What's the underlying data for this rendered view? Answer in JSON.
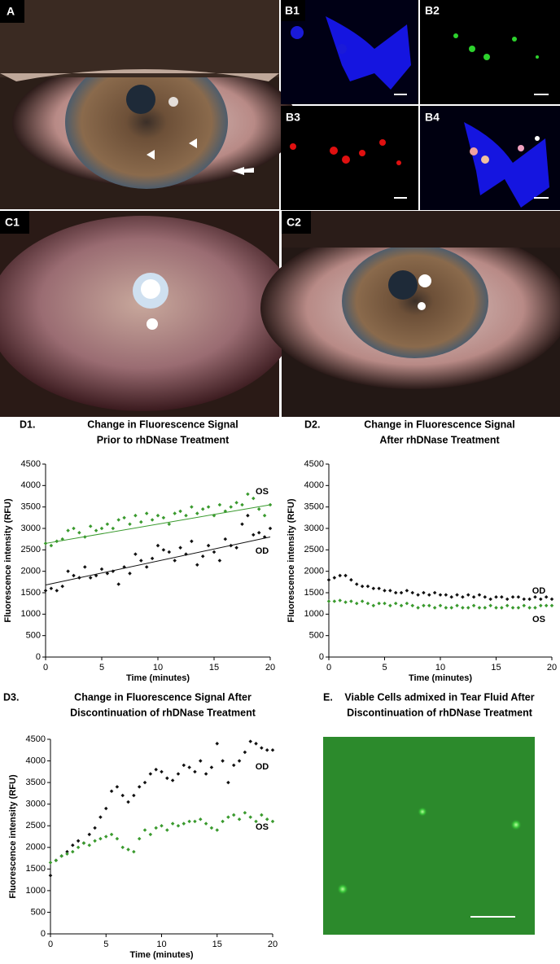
{
  "panels": {
    "A": "A",
    "B1": "B1",
    "B2": "B2",
    "B3": "B3",
    "B4": "B4",
    "C1": "C1",
    "C2": "C2",
    "E": {
      "label": "E.",
      "title": [
        "Viable Cells admixed in Tear Fluid After",
        "Discontinuation of rhDNase Treatment"
      ]
    }
  },
  "chart_data": [
    {
      "type": "scatter",
      "label": "D1.",
      "title": [
        "Change in Fluorescence Signal",
        "Prior to rhDNase Treatment"
      ],
      "x_label": "Time (minutes)",
      "y_label": "Fluorescence intensity (RFU)",
      "x": [
        0,
        0.5,
        1,
        1.5,
        2,
        2.5,
        3,
        3.5,
        4,
        4.5,
        5,
        5.5,
        6,
        6.5,
        7,
        7.5,
        8,
        8.5,
        9,
        9.5,
        10,
        10.5,
        11,
        11.5,
        12,
        12.5,
        13,
        13.5,
        14,
        14.5,
        15,
        15.5,
        16,
        16.5,
        17,
        17.5,
        18,
        18.5,
        19,
        19.5,
        20
      ],
      "xlim": [
        0,
        20
      ],
      "xticks": [
        0,
        5,
        10,
        15,
        20
      ],
      "ylim": [
        0,
        4500
      ],
      "yticks": [
        0,
        500,
        1000,
        1500,
        2000,
        2500,
        3000,
        3500,
        4000,
        4500
      ],
      "series": [
        {
          "name": "OS",
          "color": "#3a9a2e",
          "trend": [
            2650,
            3550
          ],
          "values": [
            2650,
            2600,
            2700,
            2750,
            2950,
            3000,
            2900,
            2800,
            3050,
            2950,
            3000,
            3100,
            3000,
            3200,
            3250,
            3100,
            3300,
            3150,
            3350,
            3200,
            3300,
            3250,
            3100,
            3350,
            3400,
            3300,
            3500,
            3350,
            3450,
            3500,
            3300,
            3550,
            3400,
            3500,
            3600,
            3550,
            3800,
            3700,
            3450,
            3300,
            3550
          ]
        },
        {
          "name": "OD",
          "color": "#111111",
          "trend": [
            1680,
            2800
          ],
          "values": [
            1550,
            1600,
            1550,
            1650,
            2000,
            1900,
            1850,
            2100,
            1850,
            1900,
            2050,
            1950,
            2000,
            1700,
            2100,
            1950,
            2400,
            2250,
            2100,
            2300,
            2600,
            2500,
            2450,
            2250,
            2550,
            2400,
            2700,
            2150,
            2350,
            2600,
            2450,
            2250,
            2750,
            2600,
            2550,
            3100,
            3300,
            2850,
            2900,
            2800,
            3000
          ]
        }
      ]
    },
    {
      "type": "scatter",
      "label": "D2.",
      "title": [
        "Change in Fluorescence Signal",
        "After rhDNase Treatment"
      ],
      "x_label": "Time (minutes)",
      "y_label": "Fluorescence intensity (RFU)",
      "x": [
        0,
        0.5,
        1,
        1.5,
        2,
        2.5,
        3,
        3.5,
        4,
        4.5,
        5,
        5.5,
        6,
        6.5,
        7,
        7.5,
        8,
        8.5,
        9,
        9.5,
        10,
        10.5,
        11,
        11.5,
        12,
        12.5,
        13,
        13.5,
        14,
        14.5,
        15,
        15.5,
        16,
        16.5,
        17,
        17.5,
        18,
        18.5,
        19,
        19.5,
        20
      ],
      "xlim": [
        0,
        20
      ],
      "xticks": [
        0,
        5,
        10,
        15,
        20
      ],
      "ylim": [
        0,
        4500
      ],
      "yticks": [
        0,
        500,
        1000,
        1500,
        2000,
        2500,
        3000,
        3500,
        4000,
        4500
      ],
      "series": [
        {
          "name": "OD",
          "color": "#111111",
          "values": [
            1800,
            1850,
            1900,
            1900,
            1800,
            1700,
            1650,
            1650,
            1600,
            1600,
            1550,
            1550,
            1500,
            1500,
            1550,
            1500,
            1450,
            1500,
            1450,
            1500,
            1450,
            1450,
            1400,
            1450,
            1400,
            1450,
            1400,
            1450,
            1400,
            1350,
            1400,
            1400,
            1350,
            1400,
            1400,
            1350,
            1350,
            1400,
            1350,
            1400,
            1350
          ]
        },
        {
          "name": "OS",
          "color": "#3a9a2e",
          "values": [
            1300,
            1300,
            1320,
            1280,
            1300,
            1250,
            1300,
            1250,
            1200,
            1250,
            1250,
            1200,
            1250,
            1200,
            1250,
            1200,
            1150,
            1200,
            1200,
            1150,
            1200,
            1150,
            1150,
            1200,
            1150,
            1150,
            1200,
            1150,
            1150,
            1200,
            1150,
            1150,
            1200,
            1150,
            1150,
            1200,
            1150,
            1150,
            1200,
            1200,
            1200
          ]
        }
      ]
    },
    {
      "type": "scatter",
      "label": "D3.",
      "title": [
        "Change in Fluorescence Signal After",
        "Discontinuation of rhDNase Treatment"
      ],
      "x_label": "Time (minutes)",
      "y_label": "Fluorescence intensity (RFU)",
      "x": [
        0,
        0.5,
        1,
        1.5,
        2,
        2.5,
        3,
        3.5,
        4,
        4.5,
        5,
        5.5,
        6,
        6.5,
        7,
        7.5,
        8,
        8.5,
        9,
        9.5,
        10,
        10.5,
        11,
        11.5,
        12,
        12.5,
        13,
        13.5,
        14,
        14.5,
        15,
        15.5,
        16,
        16.5,
        17,
        17.5,
        18,
        18.5,
        19,
        19.5,
        20
      ],
      "xlim": [
        0,
        20
      ],
      "xticks": [
        0,
        5,
        10,
        15,
        20
      ],
      "ylim": [
        0,
        4500
      ],
      "yticks": [
        0,
        500,
        1000,
        1500,
        2000,
        2500,
        3000,
        3500,
        4000,
        4500
      ],
      "series": [
        {
          "name": "OD",
          "color": "#111111",
          "values": [
            1350,
            1700,
            1800,
            1900,
            2050,
            2150,
            2100,
            2300,
            2450,
            2700,
            2900,
            3300,
            3400,
            3200,
            3050,
            3200,
            3400,
            3500,
            3700,
            3800,
            3750,
            3600,
            3550,
            3700,
            3900,
            3850,
            3750,
            4000,
            3700,
            3850,
            4400,
            4000,
            3500,
            3900,
            4000,
            4200,
            4450,
            4400,
            4300,
            4250,
            4250
          ]
        },
        {
          "name": "OS",
          "color": "#3a9a2e",
          "values": [
            1650,
            1700,
            1800,
            1850,
            1900,
            2000,
            2100,
            2050,
            2150,
            2200,
            2250,
            2300,
            2200,
            2000,
            1950,
            1900,
            2200,
            2400,
            2300,
            2450,
            2500,
            2400,
            2550,
            2500,
            2550,
            2600,
            2600,
            2650,
            2550,
            2450,
            2400,
            2600,
            2700,
            2750,
            2650,
            2800,
            2700,
            2600,
            2750,
            2650,
            2600
          ]
        }
      ]
    }
  ]
}
